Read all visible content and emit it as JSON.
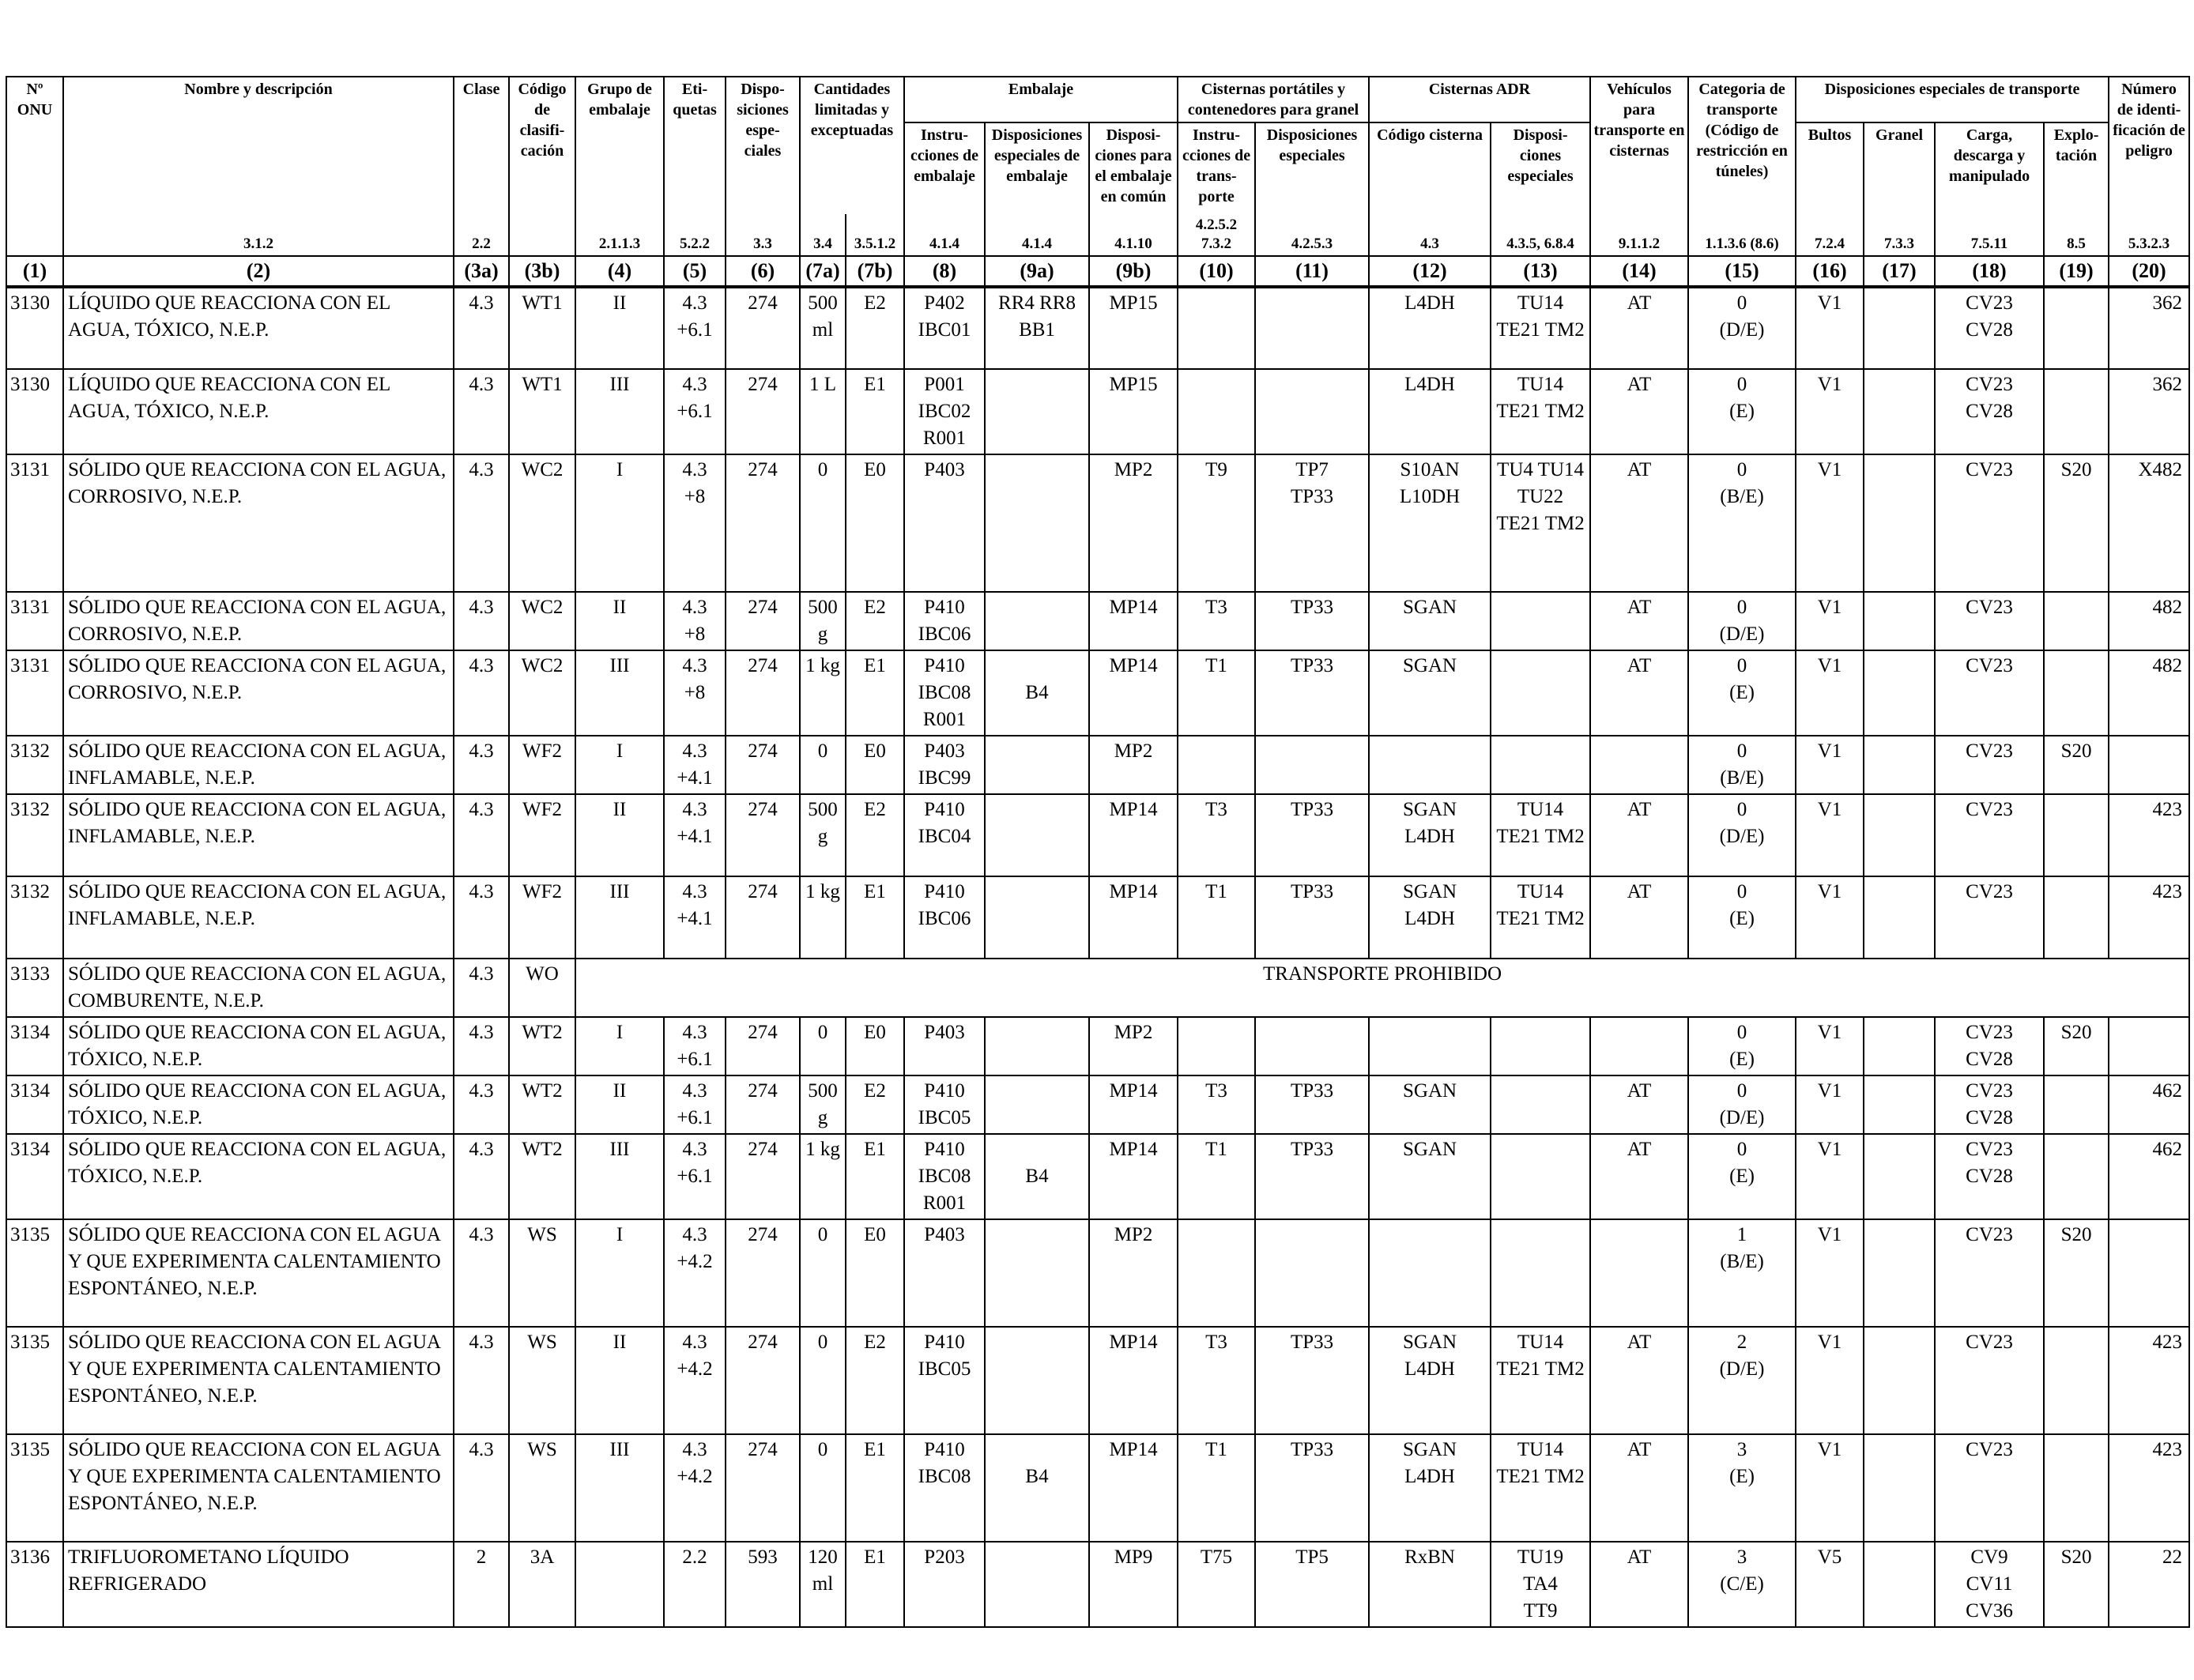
{
  "headers": {
    "onu": "Nº ONU",
    "nombre": "Nombre y descripción",
    "clase": "Clase",
    "codigo": "Código de clasifi- cación",
    "grupo": "Grupo de embalaje",
    "etiquetas": "Eti- quetas",
    "disposiciones": "Dispo- siciones espe- ciales",
    "cantidades": "Cantidades limitadas y exceptuadas",
    "embalaje": "Embalaje",
    "instr_emb": "Instru- cciones de embalaje",
    "disp_esp_emb": "Disposiciones especiales de embalaje",
    "disp_comun": "Disposi- ciones para el embalaje en común",
    "cisternas_portatiles": "Cisternas portátiles y contenedores para granel",
    "instr_transp": "Instru- cciones de trans- porte",
    "disp_esp_port": "Disposiciones especiales",
    "cisternas_adr": "Cisternas ADR",
    "codigo_cisterna": "Código cisterna",
    "disp_esp_adr": "Disposi- ciones especiales",
    "vehiculos": "Vehículos para transporte en cisternas",
    "categoria": "Categoria de transporte (Código de restricción en túneles)",
    "disp_transp": "Disposiciones especiales de transporte",
    "bultos": "Bultos",
    "granel": "Granel",
    "carga": "Carga, descarga y manipulado",
    "explotacion": "Explo- tación",
    "numero_peligro": "Número de identi- ficación de peligro"
  },
  "refs": [
    "",
    "3.1.2",
    "2.2",
    "",
    "2.1.1.3",
    "5.2.2",
    "3.3",
    "3.4",
    "3.5.1.2",
    "4.1.4",
    "4.1.4",
    "4.1.10",
    "4.2.5.2 7.3.2",
    "4.2.5.3",
    "4.3",
    "4.3.5, 6.8.4",
    "9.1.1.2",
    "1.1.3.6 (8.6)",
    "7.2.4",
    "7.3.3",
    "7.5.11",
    "8.5",
    "5.3.2.3"
  ],
  "col_numbers": [
    "(1)",
    "(2)",
    "(3a)",
    "(3b)",
    "(4)",
    "(5)",
    "(6)",
    "(7a)",
    "(7b)",
    "(8)",
    "(9a)",
    "(9b)",
    "(10)",
    "(11)",
    "(12)",
    "(13)",
    "(14)",
    "(15)",
    "(16)",
    "(17)",
    "(18)",
    "(19)",
    "(20)"
  ],
  "rows": [
    {
      "onu": "3130",
      "nombre": "LÍQUIDO QUE REACCIONA CON EL AGUA, TÓXICO, N.E.P.",
      "clase": "4.3",
      "codigo": "WT1",
      "grupo": "II",
      "etiquetas": "4.3\n+6.1",
      "disp": "274",
      "c7a": "500\nml",
      "c7b": "E2",
      "c8": "P402\nIBC01",
      "c9a": "RR4 RR8\nBB1",
      "c9b": "MP15",
      "c10": "",
      "c11": "",
      "c12": "L4DH",
      "c13": "TU14\nTE21 TM2",
      "c14": "AT",
      "c15": "0\n(D/E)",
      "c16": "V1",
      "c17": "",
      "c18": "CV23\nCV28",
      "c19": "",
      "c20": "362",
      "h": 104
    },
    {
      "onu": "3130",
      "nombre": "LÍQUIDO QUE REACCIONA CON EL AGUA, TÓXICO, N.E.P.",
      "clase": "4.3",
      "codigo": "WT1",
      "grupo": "III",
      "etiquetas": "4.3\n+6.1",
      "disp": "274",
      "c7a": "1 L",
      "c7b": "E1",
      "c8": "P001\nIBC02\nR001",
      "c9a": "",
      "c9b": "MP15",
      "c10": "",
      "c11": "",
      "c12": "L4DH",
      "c13": "TU14\nTE21 TM2",
      "c14": "AT",
      "c15": "0\n(E)",
      "c16": "V1",
      "c17": "",
      "c18": "CV23\nCV28",
      "c19": "",
      "c20": "362",
      "h": 104
    },
    {
      "onu": "3131",
      "nombre": "SÓLIDO QUE REACCIONA CON EL AGUA, CORROSIVO, N.E.P.",
      "clase": "4.3",
      "codigo": "WC2",
      "grupo": "I",
      "etiquetas": "4.3\n+8",
      "disp": "274",
      "c7a": "0",
      "c7b": "E0",
      "c8": "P403",
      "c9a": "",
      "c9b": "MP2",
      "c10": "T9",
      "c11": "TP7\nTP33",
      "c12": "S10AN\nL10DH",
      "c13": "TU4 TU14\nTU22\nTE21 TM2",
      "c14": "AT",
      "c15": "0\n(B/E)",
      "c16": "V1",
      "c17": "",
      "c18": "CV23",
      "c19": "S20",
      "c20": "X482",
      "h": 174
    },
    {
      "onu": "3131",
      "nombre": "SÓLIDO QUE REACCIONA CON EL AGUA, CORROSIVO, N.E.P.",
      "clase": "4.3",
      "codigo": "WC2",
      "grupo": "II",
      "etiquetas": "4.3\n+8",
      "disp": "274",
      "c7a": "500\ng",
      "c7b": "E2",
      "c8": "P410\nIBC06",
      "c9a": "",
      "c9b": "MP14",
      "c10": "T3",
      "c11": "TP33",
      "c12": "SGAN",
      "c13": "",
      "c14": "AT",
      "c15": "0\n(D/E)",
      "c16": "V1",
      "c17": "",
      "c18": "CV23",
      "c19": "",
      "c20": "482",
      "h": 70
    },
    {
      "onu": "3131",
      "nombre": "SÓLIDO QUE REACCIONA CON EL AGUA, CORROSIVO, N.E.P.",
      "clase": "4.3",
      "codigo": "WC2",
      "grupo": "III",
      "etiquetas": "4.3\n+8",
      "disp": "274",
      "c7a": "1 kg",
      "c7b": "E1",
      "c8": "P410\nIBC08\nR001",
      "c9a": "\nB4",
      "c9b": "MP14",
      "c10": "T1",
      "c11": "TP33",
      "c12": "SGAN",
      "c13": "",
      "c14": "AT",
      "c15": "0\n(E)",
      "c16": "V1",
      "c17": "",
      "c18": "CV23",
      "c19": "",
      "c20": "482",
      "h": 104
    },
    {
      "onu": "3132",
      "nombre": "SÓLIDO QUE REACCIONA CON EL AGUA, INFLAMABLE, N.E.P.",
      "clase": "4.3",
      "codigo": "WF2",
      "grupo": "I",
      "etiquetas": "4.3\n+4.1",
      "disp": "274",
      "c7a": "0",
      "c7b": "E0",
      "c8": "P403\nIBC99",
      "c9a": "",
      "c9b": "MP2",
      "c10": "",
      "c11": "",
      "c12": "",
      "c13": "",
      "c14": "",
      "c15": "0\n(B/E)",
      "c16": "V1",
      "c17": "",
      "c18": "CV23",
      "c19": "S20",
      "c20": "",
      "h": 70
    },
    {
      "onu": "3132",
      "nombre": "SÓLIDO QUE REACCIONA CON EL AGUA, INFLAMABLE, N.E.P.",
      "clase": "4.3",
      "codigo": "WF2",
      "grupo": "II",
      "etiquetas": "4.3\n+4.1",
      "disp": "274",
      "c7a": "500\ng",
      "c7b": "E2",
      "c8": "P410\nIBC04",
      "c9a": "",
      "c9b": "MP14",
      "c10": "T3",
      "c11": "TP33",
      "c12": "SGAN\nL4DH",
      "c13": "TU14\nTE21 TM2",
      "c14": "AT",
      "c15": "0\n(D/E)",
      "c16": "V1",
      "c17": "",
      "c18": "CV23",
      "c19": "",
      "c20": "423",
      "h": 104
    },
    {
      "onu": "3132",
      "nombre": "SÓLIDO QUE REACCIONA CON EL AGUA, INFLAMABLE, N.E.P.",
      "clase": "4.3",
      "codigo": "WF2",
      "grupo": "III",
      "etiquetas": "4.3\n+4.1",
      "disp": "274",
      "c7a": "1 kg",
      "c7b": "E1",
      "c8": "P410\nIBC06",
      "c9a": "",
      "c9b": "MP14",
      "c10": "T1",
      "c11": "TP33",
      "c12": "SGAN\nL4DH",
      "c13": "TU14\nTE21 TM2",
      "c14": "AT",
      "c15": "0\n(E)",
      "c16": "V1",
      "c17": "",
      "c18": "CV23",
      "c19": "",
      "c20": "423",
      "h": 104
    },
    {
      "onu": "3133",
      "nombre": "SÓLIDO QUE REACCIONA CON EL AGUA, COMBURENTE, N.E.P.",
      "clase": "4.3",
      "codigo": "WO",
      "prohibited": "TRANSPORTE PROHIBIDO",
      "h": 70
    },
    {
      "onu": "3134",
      "nombre": "SÓLIDO QUE REACCIONA CON EL AGUA, TÓXICO, N.E.P.",
      "clase": "4.3",
      "codigo": "WT2",
      "grupo": "I",
      "etiquetas": "4.3\n+6.1",
      "disp": "274",
      "c7a": "0",
      "c7b": "E0",
      "c8": "P403",
      "c9a": "",
      "c9b": "MP2",
      "c10": "",
      "c11": "",
      "c12": "",
      "c13": "",
      "c14": "",
      "c15": "0\n(E)",
      "c16": "V1",
      "c17": "",
      "c18": "CV23\nCV28",
      "c19": "S20",
      "c20": "",
      "h": 70
    },
    {
      "onu": "3134",
      "nombre": "SÓLIDO QUE REACCIONA CON EL AGUA, TÓXICO, N.E.P.",
      "clase": "4.3",
      "codigo": "WT2",
      "grupo": "II",
      "etiquetas": "4.3\n+6.1",
      "disp": "274",
      "c7a": "500\ng",
      "c7b": "E2",
      "c8": "P410\nIBC05",
      "c9a": "",
      "c9b": "MP14",
      "c10": "T3",
      "c11": "TP33",
      "c12": "SGAN",
      "c13": "",
      "c14": "AT",
      "c15": "0\n(D/E)",
      "c16": "V1",
      "c17": "",
      "c18": "CV23\nCV28",
      "c19": "",
      "c20": "462",
      "h": 70
    },
    {
      "onu": "3134",
      "nombre": "SÓLIDO QUE REACCIONA CON EL AGUA, TÓXICO, N.E.P.",
      "clase": "4.3",
      "codigo": "WT2",
      "grupo": "III",
      "etiquetas": "4.3\n+6.1",
      "disp": "274",
      "c7a": "1 kg",
      "c7b": "E1",
      "c8": "P410\nIBC08\nR001",
      "c9a": "\nB4",
      "c9b": "MP14",
      "c10": "T1",
      "c11": "TP33",
      "c12": "SGAN",
      "c13": "",
      "c14": "AT",
      "c15": "0\n(E)",
      "c16": "V1",
      "c17": "",
      "c18": "CV23\nCV28",
      "c19": "",
      "c20": "462",
      "h": 104
    },
    {
      "onu": "3135",
      "nombre": "SÓLIDO QUE REACCIONA CON EL AGUA Y QUE EXPERIMENTA CALENTAMIENTO ESPONTÁNEO, N.E.P.",
      "clase": "4.3",
      "codigo": "WS",
      "grupo": "I",
      "etiquetas": "4.3\n+4.2",
      "disp": "274",
      "c7a": "0",
      "c7b": "E0",
      "c8": "P403",
      "c9a": "",
      "c9b": "MP2",
      "c10": "",
      "c11": "",
      "c12": "",
      "c13": "",
      "c14": "",
      "c15": "1\n(B/E)",
      "c16": "V1",
      "c17": "",
      "c18": "CV23",
      "c19": "S20",
      "c20": "",
      "h": 136
    },
    {
      "onu": "3135",
      "nombre": "SÓLIDO QUE REACCIONA CON EL AGUA Y QUE EXPERIMENTA CALENTAMIENTO ESPONTÁNEO, N.E.P.",
      "clase": "4.3",
      "codigo": "WS",
      "grupo": "II",
      "etiquetas": "4.3\n+4.2",
      "disp": "274",
      "c7a": "0",
      "c7b": "E2",
      "c8": "P410\nIBC05",
      "c9a": "",
      "c9b": "MP14",
      "c10": "T3",
      "c11": "TP33",
      "c12": "SGAN\nL4DH",
      "c13": "TU14\nTE21 TM2",
      "c14": "AT",
      "c15": "2\n(D/E)",
      "c16": "V1",
      "c17": "",
      "c18": "CV23",
      "c19": "",
      "c20": "423",
      "h": 136
    },
    {
      "onu": "3135",
      "nombre": "SÓLIDO QUE REACCIONA CON EL AGUA Y QUE EXPERIMENTA CALENTAMIENTO ESPONTÁNEO, N.E.P.",
      "clase": "4.3",
      "codigo": "WS",
      "grupo": "III",
      "etiquetas": "4.3\n+4.2",
      "disp": "274",
      "c7a": "0",
      "c7b": "E1",
      "c8": "P410\nIBC08",
      "c9a": "\nB4",
      "c9b": "MP14",
      "c10": "T1",
      "c11": "TP33",
      "c12": "SGAN\nL4DH",
      "c13": "TU14\nTE21 TM2",
      "c14": "AT",
      "c15": "3\n(E)",
      "c16": "V1",
      "c17": "",
      "c18": "CV23",
      "c19": "",
      "c20": "423",
      "h": 136
    },
    {
      "onu": "3136",
      "nombre": "TRIFLUOROMETANO LÍQUIDO REFRIGERADO",
      "clase": "2",
      "codigo": "3A",
      "grupo": "",
      "etiquetas": "2.2",
      "disp": "593",
      "c7a": "120\nml",
      "c7b": "E1",
      "c8": "P203",
      "c9a": "",
      "c9b": "MP9",
      "c10": "T75",
      "c11": "TP5",
      "c12": "RxBN",
      "c13": "TU19\nTA4\nTT9",
      "c14": "AT",
      "c15": "3\n(C/E)",
      "c16": "V5",
      "c17": "",
      "c18": "CV9\nCV11\nCV36",
      "c19": "S20",
      "c20": "22",
      "h": 104
    }
  ]
}
